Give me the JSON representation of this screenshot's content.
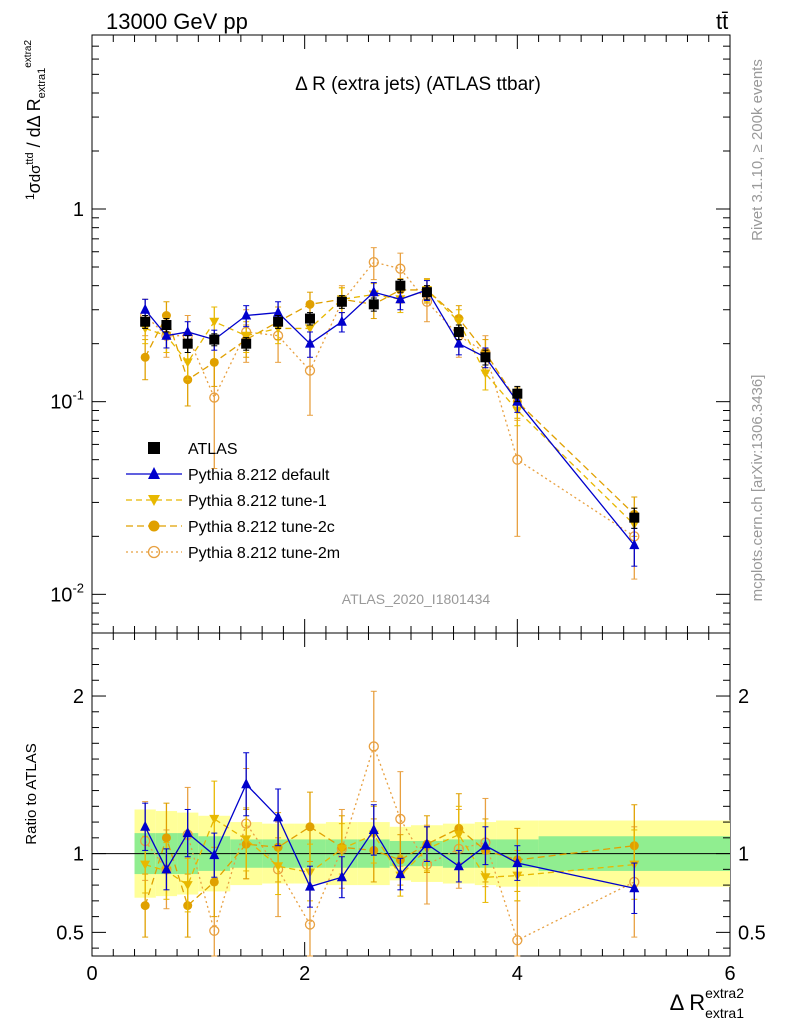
{
  "header": {
    "energy_label": "13000 GeV pp",
    "process_label": "tt̄"
  },
  "side_text": {
    "rivet": "Rivet 3.1.10, ≥ 200k events",
    "mcplots": "mcplots.cern.ch [arXiv:1306.3436]"
  },
  "colors": {
    "atlas": "#000000",
    "default": "#0000cc",
    "tune1": "#e8b800",
    "tune2c": "#e0a000",
    "tune2m": "#e8a040",
    "band_inner": "#90ee90",
    "band_outer": "#ffff99"
  },
  "chart_data": {
    "type": "scatter",
    "title": "Δ R (extra jets) (ATLAS ttbar)",
    "watermark": "ATLAS_2020_I1801434",
    "xlabel": "Δ R",
    "xlabel_sup": "extra2",
    "xlabel_sub": "extra1",
    "ylabel": "1/σ dσ^ttd / dΔ R_extra1^extra2",
    "ratio_ylabel": "Ratio to ATLAS",
    "xlim": [
      0,
      6
    ],
    "ylim": [
      0.0063,
      8
    ],
    "ylog": true,
    "ratio_ylim": [
      0.35,
      2.4
    ],
    "xticks": [
      0,
      2,
      4,
      6
    ],
    "yticks": [
      {
        "value": 1,
        "label": "1"
      },
      {
        "value": 0.1,
        "label": "10^-1"
      },
      {
        "value": 0.01,
        "label": "10^-2"
      }
    ],
    "ratio_yticks": [
      0.5,
      1,
      2
    ],
    "legend_position": "lower-left",
    "bins": [
      [
        0.4,
        0.6
      ],
      [
        0.6,
        0.8
      ],
      [
        0.8,
        1.0
      ],
      [
        1.0,
        1.3
      ],
      [
        1.3,
        1.6
      ],
      [
        1.6,
        1.9
      ],
      [
        1.9,
        2.2
      ],
      [
        2.2,
        2.5
      ],
      [
        2.5,
        2.8
      ],
      [
        2.8,
        3.0
      ],
      [
        3.0,
        3.3
      ],
      [
        3.3,
        3.6
      ],
      [
        3.6,
        3.8
      ],
      [
        3.8,
        4.2
      ],
      [
        4.2,
        6.0
      ]
    ],
    "ratio_band_inner": [
      0.13,
      0.13,
      0.13,
      0.11,
      0.09,
      0.09,
      0.09,
      0.09,
      0.09,
      0.08,
      0.08,
      0.09,
      0.09,
      0.09,
      0.11
    ],
    "ratio_band_outer": [
      0.28,
      0.27,
      0.26,
      0.24,
      0.2,
      0.19,
      0.19,
      0.2,
      0.2,
      0.17,
      0.18,
      0.19,
      0.2,
      0.21,
      0.21
    ],
    "series": [
      {
        "name": "ATLAS",
        "key": "atlas",
        "x": [
          0.5,
          0.7,
          0.9,
          1.15,
          1.45,
          1.75,
          2.05,
          2.35,
          2.65,
          2.9,
          3.15,
          3.45,
          3.7,
          4.0,
          5.1
        ],
        "y": [
          0.26,
          0.25,
          0.2,
          0.21,
          0.2,
          0.26,
          0.27,
          0.33,
          0.32,
          0.4,
          0.37,
          0.23,
          0.17,
          0.11,
          0.025
        ],
        "err": [
          0.02,
          0.02,
          0.02,
          0.015,
          0.015,
          0.02,
          0.02,
          0.025,
          0.025,
          0.03,
          0.03,
          0.02,
          0.015,
          0.01,
          0.003
        ],
        "ratio": [
          1,
          1,
          1,
          1,
          1,
          1,
          1,
          1,
          1,
          1,
          1,
          1,
          1,
          1,
          1
        ],
        "ratio_err": [
          0,
          0,
          0,
          0,
          0,
          0,
          0,
          0,
          0,
          0,
          0,
          0,
          0,
          0,
          0
        ]
      },
      {
        "name": "Pythia 8.212 default",
        "key": "default",
        "x": [
          0.5,
          0.7,
          0.9,
          1.15,
          1.45,
          1.75,
          2.05,
          2.35,
          2.65,
          2.9,
          3.15,
          3.45,
          3.7,
          4.0,
          5.1
        ],
        "y": [
          0.3,
          0.22,
          0.23,
          0.21,
          0.28,
          0.29,
          0.2,
          0.26,
          0.37,
          0.34,
          0.38,
          0.2,
          0.17,
          0.1,
          0.018
        ],
        "err": [
          0.04,
          0.03,
          0.03,
          0.025,
          0.035,
          0.04,
          0.03,
          0.03,
          0.045,
          0.04,
          0.045,
          0.025,
          0.02,
          0.012,
          0.004
        ],
        "ratio": [
          1.17,
          0.9,
          1.13,
          0.99,
          1.44,
          1.23,
          0.79,
          0.85,
          1.15,
          0.87,
          1.06,
          0.92,
          1.05,
          0.94,
          0.78
        ],
        "ratio_err": [
          0.15,
          0.13,
          0.15,
          0.14,
          0.2,
          0.18,
          0.13,
          0.13,
          0.16,
          0.1,
          0.11,
          0.1,
          0.12,
          0.11,
          0.16
        ]
      },
      {
        "name": "Pythia 8.212 tune-1",
        "key": "tune1",
        "x": [
          0.5,
          0.7,
          0.9,
          1.15,
          1.45,
          1.75,
          2.05,
          2.35,
          2.65,
          2.9,
          3.15,
          3.45,
          3.7,
          4.0,
          5.1
        ],
        "y": [
          0.24,
          0.22,
          0.16,
          0.26,
          0.22,
          0.24,
          0.24,
          0.34,
          0.36,
          0.34,
          0.38,
          0.26,
          0.14,
          0.09,
          0.023
        ],
        "err": [
          0.04,
          0.04,
          0.03,
          0.05,
          0.04,
          0.04,
          0.04,
          0.05,
          0.05,
          0.05,
          0.05,
          0.04,
          0.025,
          0.015,
          0.005
        ],
        "ratio": [
          0.93,
          0.89,
          0.8,
          1.22,
          1.09,
          0.92,
          0.88,
          1.03,
          1.12,
          0.86,
          1.03,
          1.12,
          0.85,
          0.86,
          0.93
        ],
        "ratio_err": [
          0.18,
          0.18,
          0.17,
          0.24,
          0.2,
          0.18,
          0.18,
          0.16,
          0.18,
          0.13,
          0.14,
          0.18,
          0.16,
          0.16,
          0.22
        ]
      },
      {
        "name": "Pythia 8.212 tune-2c",
        "key": "tune2c",
        "x": [
          0.5,
          0.7,
          0.9,
          1.15,
          1.45,
          1.75,
          2.05,
          2.35,
          2.65,
          2.9,
          3.15,
          3.45,
          3.7,
          4.0,
          5.1
        ],
        "y": [
          0.17,
          0.28,
          0.13,
          0.16,
          0.21,
          0.26,
          0.32,
          0.34,
          0.32,
          0.38,
          0.38,
          0.27,
          0.18,
          0.1,
          0.026
        ],
        "err": [
          0.04,
          0.05,
          0.035,
          0.04,
          0.04,
          0.05,
          0.05,
          0.05,
          0.05,
          0.055,
          0.055,
          0.045,
          0.03,
          0.018,
          0.006
        ],
        "ratio": [
          0.67,
          1.1,
          0.67,
          0.82,
          1.06,
          1.04,
          1.17,
          1.04,
          1.02,
          0.96,
          1.06,
          1.16,
          1.02,
          0.96,
          1.05
        ],
        "ratio_err": [
          0.2,
          0.22,
          0.2,
          0.22,
          0.22,
          0.22,
          0.22,
          0.2,
          0.2,
          0.16,
          0.18,
          0.22,
          0.2,
          0.2,
          0.26
        ]
      },
      {
        "name": "Pythia 8.212 tune-2m",
        "key": "tune2m",
        "x": [
          0.5,
          0.7,
          0.9,
          1.15,
          1.45,
          1.75,
          2.05,
          2.35,
          2.65,
          2.9,
          3.15,
          3.45,
          3.7,
          4.0,
          5.1
        ],
        "y": [
          0.28,
          0.22,
          0.22,
          0.105,
          0.23,
          0.22,
          0.145,
          0.33,
          0.53,
          0.49,
          0.33,
          0.22,
          0.18,
          0.05,
          0.02
        ],
        "err": [
          0.06,
          0.05,
          0.06,
          0.06,
          0.07,
          0.06,
          0.06,
          0.07,
          0.1,
          0.1,
          0.07,
          0.05,
          0.04,
          0.03,
          0.008
        ],
        "ratio": [
          1.08,
          0.9,
          1.12,
          0.51,
          1.19,
          0.9,
          0.55,
          1.03,
          1.68,
          1.22,
          0.93,
          1.03,
          1.07,
          0.45,
          0.82
        ],
        "ratio_err": [
          0.25,
          0.25,
          0.3,
          0.3,
          0.35,
          0.3,
          0.25,
          0.25,
          0.35,
          0.3,
          0.25,
          0.25,
          0.28,
          0.25,
          0.35
        ]
      }
    ]
  }
}
